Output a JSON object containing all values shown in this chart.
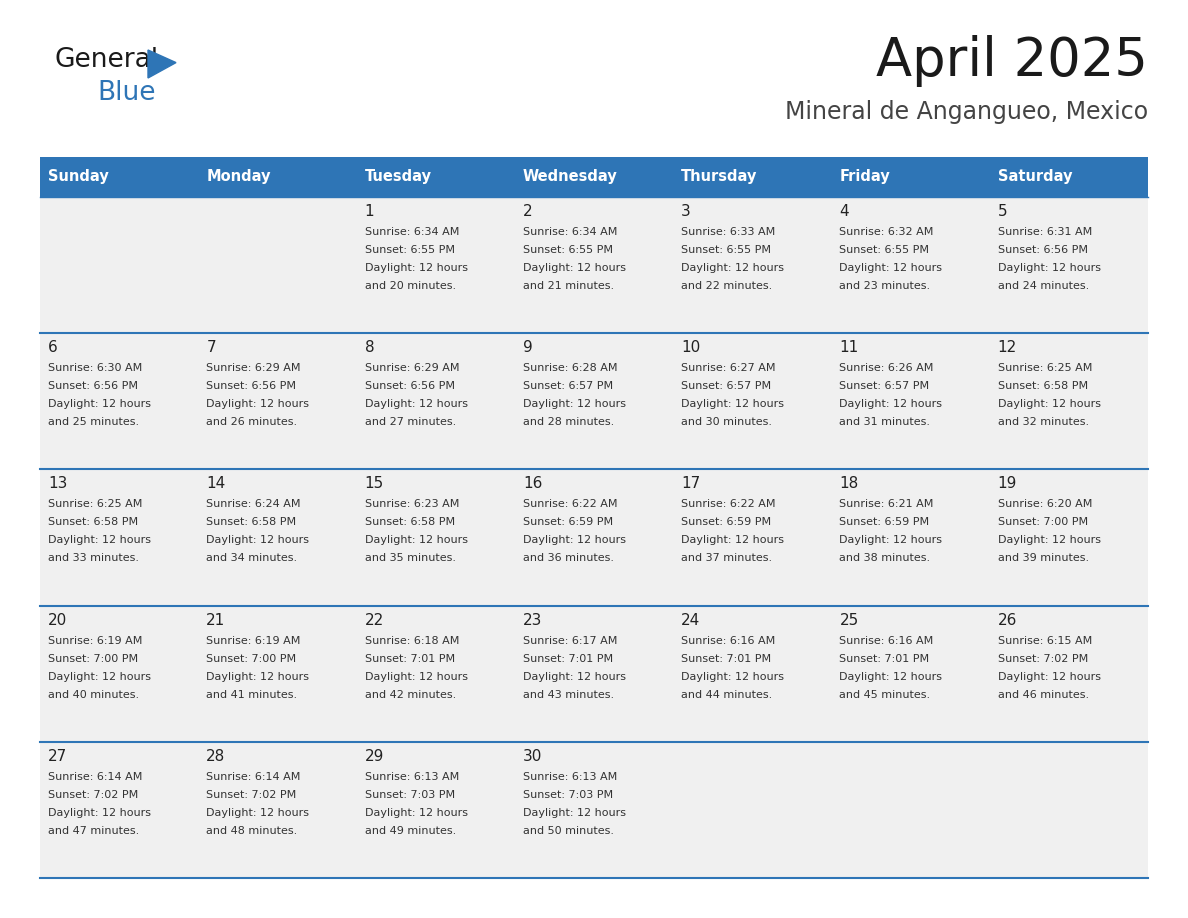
{
  "title": "April 2025",
  "subtitle": "Mineral de Angangueo, Mexico",
  "header_bg": "#2E75B6",
  "header_text_color": "#FFFFFF",
  "cell_bg_light": "#F0F0F0",
  "separator_color": "#2E75B6",
  "text_color": "#333333",
  "day_num_color": "#222222",
  "days_of_week": [
    "Sunday",
    "Monday",
    "Tuesday",
    "Wednesday",
    "Thursday",
    "Friday",
    "Saturday"
  ],
  "calendar_data": [
    [
      {
        "day": "",
        "sunrise": "",
        "sunset": "",
        "daylight_min": 0
      },
      {
        "day": "",
        "sunrise": "",
        "sunset": "",
        "daylight_min": 0
      },
      {
        "day": "1",
        "sunrise": "6:34 AM",
        "sunset": "6:55 PM",
        "daylight_min": 20
      },
      {
        "day": "2",
        "sunrise": "6:34 AM",
        "sunset": "6:55 PM",
        "daylight_min": 21
      },
      {
        "day": "3",
        "sunrise": "6:33 AM",
        "sunset": "6:55 PM",
        "daylight_min": 22
      },
      {
        "day": "4",
        "sunrise": "6:32 AM",
        "sunset": "6:55 PM",
        "daylight_min": 23
      },
      {
        "day": "5",
        "sunrise": "6:31 AM",
        "sunset": "6:56 PM",
        "daylight_min": 24
      }
    ],
    [
      {
        "day": "6",
        "sunrise": "6:30 AM",
        "sunset": "6:56 PM",
        "daylight_min": 25
      },
      {
        "day": "7",
        "sunrise": "6:29 AM",
        "sunset": "6:56 PM",
        "daylight_min": 26
      },
      {
        "day": "8",
        "sunrise": "6:29 AM",
        "sunset": "6:56 PM",
        "daylight_min": 27
      },
      {
        "day": "9",
        "sunrise": "6:28 AM",
        "sunset": "6:57 PM",
        "daylight_min": 28
      },
      {
        "day": "10",
        "sunrise": "6:27 AM",
        "sunset": "6:57 PM",
        "daylight_min": 30
      },
      {
        "day": "11",
        "sunrise": "6:26 AM",
        "sunset": "6:57 PM",
        "daylight_min": 31
      },
      {
        "day": "12",
        "sunrise": "6:25 AM",
        "sunset": "6:58 PM",
        "daylight_min": 32
      }
    ],
    [
      {
        "day": "13",
        "sunrise": "6:25 AM",
        "sunset": "6:58 PM",
        "daylight_min": 33
      },
      {
        "day": "14",
        "sunrise": "6:24 AM",
        "sunset": "6:58 PM",
        "daylight_min": 34
      },
      {
        "day": "15",
        "sunrise": "6:23 AM",
        "sunset": "6:58 PM",
        "daylight_min": 35
      },
      {
        "day": "16",
        "sunrise": "6:22 AM",
        "sunset": "6:59 PM",
        "daylight_min": 36
      },
      {
        "day": "17",
        "sunrise": "6:22 AM",
        "sunset": "6:59 PM",
        "daylight_min": 37
      },
      {
        "day": "18",
        "sunrise": "6:21 AM",
        "sunset": "6:59 PM",
        "daylight_min": 38
      },
      {
        "day": "19",
        "sunrise": "6:20 AM",
        "sunset": "7:00 PM",
        "daylight_min": 39
      }
    ],
    [
      {
        "day": "20",
        "sunrise": "6:19 AM",
        "sunset": "7:00 PM",
        "daylight_min": 40
      },
      {
        "day": "21",
        "sunrise": "6:19 AM",
        "sunset": "7:00 PM",
        "daylight_min": 41
      },
      {
        "day": "22",
        "sunrise": "6:18 AM",
        "sunset": "7:01 PM",
        "daylight_min": 42
      },
      {
        "day": "23",
        "sunrise": "6:17 AM",
        "sunset": "7:01 PM",
        "daylight_min": 43
      },
      {
        "day": "24",
        "sunrise": "6:16 AM",
        "sunset": "7:01 PM",
        "daylight_min": 44
      },
      {
        "day": "25",
        "sunrise": "6:16 AM",
        "sunset": "7:01 PM",
        "daylight_min": 45
      },
      {
        "day": "26",
        "sunrise": "6:15 AM",
        "sunset": "7:02 PM",
        "daylight_min": 46
      }
    ],
    [
      {
        "day": "27",
        "sunrise": "6:14 AM",
        "sunset": "7:02 PM",
        "daylight_min": 47
      },
      {
        "day": "28",
        "sunrise": "6:14 AM",
        "sunset": "7:02 PM",
        "daylight_min": 48
      },
      {
        "day": "29",
        "sunrise": "6:13 AM",
        "sunset": "7:03 PM",
        "daylight_min": 49
      },
      {
        "day": "30",
        "sunrise": "6:13 AM",
        "sunset": "7:03 PM",
        "daylight_min": 50
      },
      {
        "day": "",
        "sunrise": "",
        "sunset": "",
        "daylight_min": 0
      },
      {
        "day": "",
        "sunrise": "",
        "sunset": "",
        "daylight_min": 0
      },
      {
        "day": "",
        "sunrise": "",
        "sunset": "",
        "daylight_min": 0
      }
    ]
  ]
}
